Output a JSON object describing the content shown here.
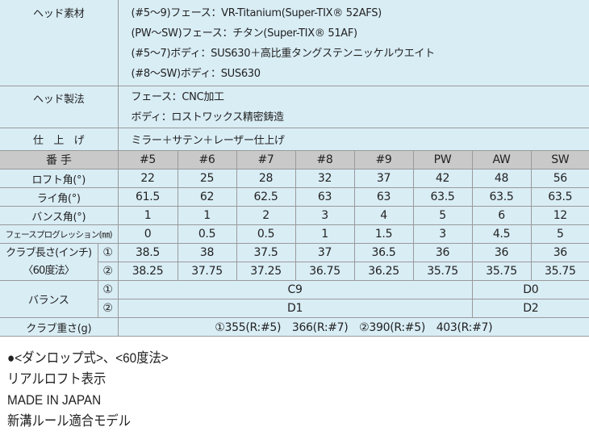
{
  "materials": {
    "head_material": {
      "label": "ヘッド素材",
      "lines": [
        "(#5〜9)フェース：VR-Titanium(Super-TIX® 52AFS)",
        "(PW〜SW)フェース：チタン(Super-TIX® 51AF)",
        "(#5〜7)ボディ：SUS630＋高比重タングステンニッケルウエイト",
        "(#8〜SW)ボディ：SUS630"
      ]
    },
    "head_method": {
      "label": "ヘッド製法",
      "lines": [
        "フェース：CNC加工",
        "ボディ：ロストワックス精密鋳造"
      ]
    },
    "finish": {
      "label": "仕　上　げ",
      "lines": [
        "ミラー＋サテン＋レーザー仕上げ"
      ]
    }
  },
  "specs": {
    "header_label": "番 手",
    "clubs": [
      "#5",
      "#6",
      "#7",
      "#8",
      "#9",
      "PW",
      "AW",
      "SW"
    ],
    "rows": [
      {
        "label": "ロフト角(°)",
        "values": [
          "22",
          "25",
          "28",
          "32",
          "37",
          "42",
          "48",
          "56"
        ]
      },
      {
        "label": "ライ角(°)",
        "values": [
          "61.5",
          "62",
          "62.5",
          "63",
          "63",
          "63.5",
          "63.5",
          "63.5"
        ]
      },
      {
        "label": "バンス角(°)",
        "values": [
          "1",
          "1",
          "2",
          "3",
          "4",
          "5",
          "6",
          "12"
        ]
      },
      {
        "label": "フェースプログレッション(㎜)",
        "values": [
          "0",
          "0.5",
          "0.5",
          "1",
          "1.5",
          "3",
          "4.5",
          "5"
        ]
      }
    ],
    "length": {
      "label1": "クラブ長さ(インチ)",
      "label2": "〈60度法〉",
      "rows": [
        {
          "mark": "①",
          "values": [
            "38.5",
            "38",
            "37.5",
            "37",
            "36.5",
            "36",
            "36",
            "36"
          ]
        },
        {
          "mark": "②",
          "values": [
            "38.25",
            "37.75",
            "37.25",
            "36.75",
            "36.25",
            "35.75",
            "35.75",
            "35.75"
          ]
        }
      ]
    },
    "balance": {
      "label": "バランス",
      "rows": [
        {
          "mark": "①",
          "a": "C9",
          "b": "D0"
        },
        {
          "mark": "②",
          "a": "D1",
          "b": "D2"
        }
      ]
    },
    "weight": {
      "label": "クラブ重さ(g)",
      "value": "①355(R:#5)　366(R:#7)　②390(R:#5)　403(R:#7)"
    }
  },
  "notes": [
    "●<ダンロップ式>、<60度法>",
    "リアルロフト表示",
    "MADE IN JAPAN",
    "新溝ルール適合モデル"
  ]
}
